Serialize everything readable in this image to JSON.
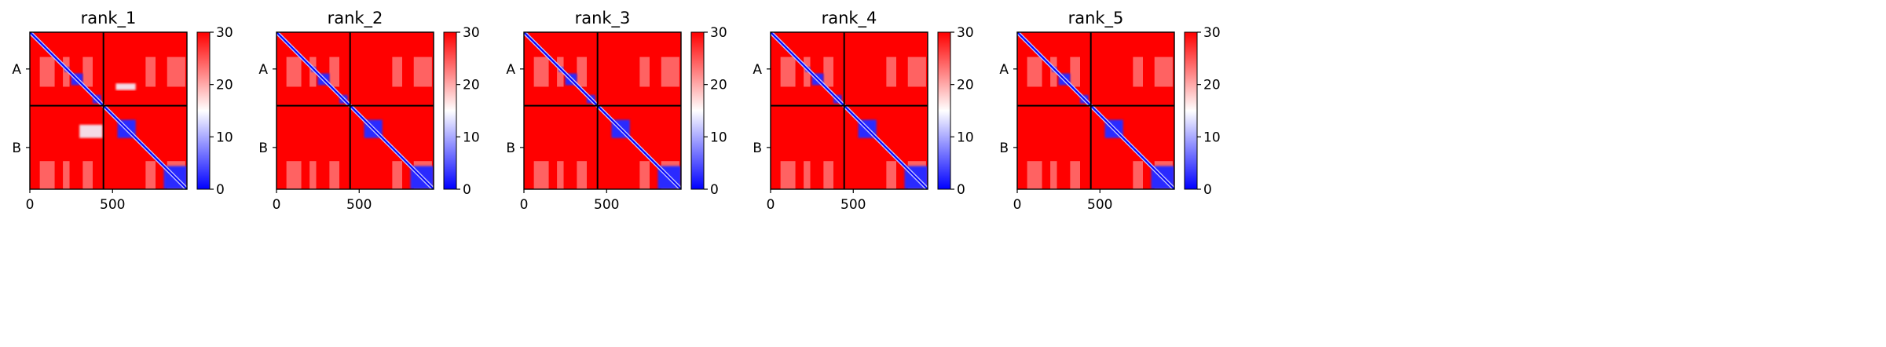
{
  "figure": {
    "background": "#ffffff"
  },
  "colormap": {
    "name": "bwr",
    "low_color": "#0000ff",
    "mid_color": "#ffffff",
    "high_color": "#ff0000",
    "vmin": 0,
    "vmax": 30
  },
  "chart_data": [
    {
      "type": "heatmap",
      "title": "rank_1",
      "xlim": [
        0,
        950
      ],
      "ylim": [
        950,
        0
      ],
      "x_ticks": [
        0,
        500
      ],
      "x_tick_labels": [
        "0",
        "500"
      ],
      "chain_boundary": 445,
      "chain_labels": [
        "A",
        "B"
      ],
      "colorbar": {
        "ticks": [
          0,
          10,
          20,
          30
        ],
        "tick_labels": [
          "0",
          "10",
          "20",
          "30"
        ]
      },
      "low_error_blocks": [
        [
          210,
          240
        ],
        [
          250,
          320
        ],
        [
          380,
          430
        ],
        [
          530,
          640
        ],
        [
          810,
          950
        ]
      ],
      "inter_chain_contacts": [
        {
          "x": [
            520,
            640
          ],
          "y": [
            310,
            350
          ]
        },
        {
          "x": [
            300,
            440
          ],
          "y": [
            560,
            640
          ]
        }
      ]
    },
    {
      "type": "heatmap",
      "title": "rank_2",
      "xlim": [
        0,
        950
      ],
      "ylim": [
        950,
        0
      ],
      "x_ticks": [
        0,
        500
      ],
      "x_tick_labels": [
        "0",
        "500"
      ],
      "chain_boundary": 445,
      "chain_labels": [
        "A",
        "B"
      ],
      "colorbar": {
        "ticks": [
          0,
          10,
          20,
          30
        ],
        "tick_labels": [
          "0",
          "10",
          "20",
          "30"
        ]
      },
      "low_error_blocks": [
        [
          210,
          240
        ],
        [
          250,
          320
        ],
        [
          380,
          430
        ],
        [
          530,
          640
        ],
        [
          810,
          950
        ]
      ],
      "inter_chain_contacts": []
    },
    {
      "type": "heatmap",
      "title": "rank_3",
      "xlim": [
        0,
        950
      ],
      "ylim": [
        950,
        0
      ],
      "x_ticks": [
        0,
        500
      ],
      "x_tick_labels": [
        "0",
        "500"
      ],
      "chain_boundary": 445,
      "chain_labels": [
        "A",
        "B"
      ],
      "colorbar": {
        "ticks": [
          0,
          10,
          20,
          30
        ],
        "tick_labels": [
          "0",
          "10",
          "20",
          "30"
        ]
      },
      "low_error_blocks": [
        [
          210,
          240
        ],
        [
          250,
          320
        ],
        [
          380,
          430
        ],
        [
          530,
          640
        ],
        [
          810,
          950
        ]
      ],
      "inter_chain_contacts": []
    },
    {
      "type": "heatmap",
      "title": "rank_4",
      "xlim": [
        0,
        950
      ],
      "ylim": [
        950,
        0
      ],
      "x_ticks": [
        0,
        500
      ],
      "x_tick_labels": [
        "0",
        "500"
      ],
      "chain_boundary": 445,
      "chain_labels": [
        "A",
        "B"
      ],
      "colorbar": {
        "ticks": [
          0,
          10,
          20,
          30
        ],
        "tick_labels": [
          "0",
          "10",
          "20",
          "30"
        ]
      },
      "low_error_blocks": [
        [
          210,
          240
        ],
        [
          250,
          320
        ],
        [
          380,
          430
        ],
        [
          530,
          640
        ],
        [
          810,
          950
        ]
      ],
      "inter_chain_contacts": []
    },
    {
      "type": "heatmap",
      "title": "rank_5",
      "xlim": [
        0,
        950
      ],
      "ylim": [
        950,
        0
      ],
      "x_ticks": [
        0,
        500
      ],
      "x_tick_labels": [
        "0",
        "500"
      ],
      "chain_boundary": 445,
      "chain_labels": [
        "A",
        "B"
      ],
      "colorbar": {
        "ticks": [
          0,
          10,
          20,
          30
        ],
        "tick_labels": [
          "0",
          "10",
          "20",
          "30"
        ]
      },
      "low_error_blocks": [
        [
          210,
          240
        ],
        [
          250,
          320
        ],
        [
          380,
          430
        ],
        [
          530,
          640
        ],
        [
          810,
          950
        ]
      ],
      "inter_chain_contacts": []
    }
  ]
}
